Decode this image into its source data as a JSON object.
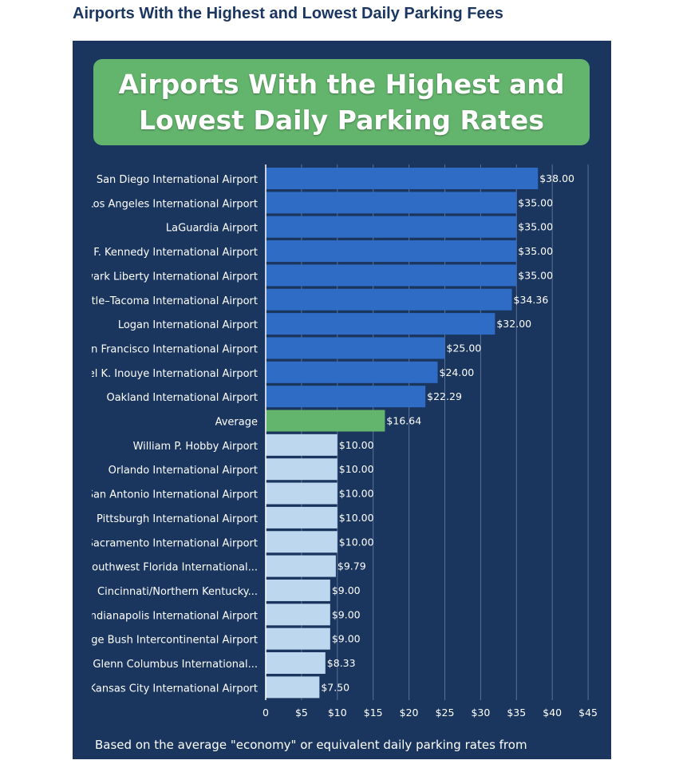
{
  "page_heading": "Airports With the Highest and Lowest Daily Parking Fees",
  "chart_data": {
    "type": "bar",
    "orientation": "horizontal",
    "title": "Airports With the Highest and Lowest Daily Parking Rates",
    "xlabel": "",
    "ylabel": "",
    "xlim": [
      0,
      45
    ],
    "x_ticks": [
      {
        "value": 0,
        "label": "0"
      },
      {
        "value": 5,
        "label": "$5"
      },
      {
        "value": 10,
        "label": "$10"
      },
      {
        "value": 15,
        "label": "$15"
      },
      {
        "value": 20,
        "label": "$20"
      },
      {
        "value": 25,
        "label": "$25"
      },
      {
        "value": 30,
        "label": "$30"
      },
      {
        "value": 35,
        "label": "$35"
      },
      {
        "value": 40,
        "label": "$40"
      },
      {
        "value": 45,
        "label": "$45"
      }
    ],
    "grid": true,
    "categories": [
      "San Diego International Airport",
      "Los Angeles International Airport",
      "LaGuardia Airport",
      "John F. Kennedy International Airport",
      "Newark Liberty International Airport",
      "Seattle–Tacoma International Airport",
      "Logan International Airport",
      "San Francisco International Airport",
      "Daniel K. Inouye International Airport",
      "Oakland International Airport",
      "Average",
      "William P. Hobby Airport",
      "Orlando International Airport",
      "San Antonio International Airport",
      "Pittsburgh International Airport",
      "Sacramento International Airport",
      "Southwest Florida International...",
      "Cincinnati/Northern Kentucky...",
      "Indianapolis International Airport",
      "George Bush Intercontinental Airport",
      "John Glenn Columbus International...",
      "Kansas City International Airport"
    ],
    "values": [
      38.0,
      35.0,
      35.0,
      35.0,
      35.0,
      34.36,
      32.0,
      25.0,
      24.0,
      22.29,
      16.64,
      10.0,
      10.0,
      10.0,
      10.0,
      10.0,
      9.79,
      9.0,
      9.0,
      9.0,
      8.33,
      7.5
    ],
    "value_labels": [
      "$38.00",
      "$35.00",
      "$35.00",
      "$35.00",
      "$35.00",
      "$34.36",
      "$32.00",
      "$25.00",
      "$24.00",
      "$22.29",
      "$16.64",
      "$10.00",
      "$10.00",
      "$10.00",
      "$10.00",
      "$10.00",
      "$9.79",
      "$9.00",
      "$9.00",
      "$9.00",
      "$8.33",
      "$7.50"
    ],
    "groups": [
      "highest",
      "highest",
      "highest",
      "highest",
      "highest",
      "highest",
      "highest",
      "highest",
      "highest",
      "highest",
      "average",
      "lowest",
      "lowest",
      "lowest",
      "lowest",
      "lowest",
      "lowest",
      "lowest",
      "lowest",
      "lowest",
      "lowest",
      "lowest"
    ],
    "colors": {
      "highest": "#2e6cc6",
      "average": "#63b46c",
      "lowest": "#bcd7ee",
      "panel_background": "#1a365e",
      "banner": "#63b46c",
      "heading_text": "#1b3661",
      "gridline": "#5b7196"
    }
  },
  "footnote": "Based on the average \"economy\" or equivalent daily parking rates from"
}
